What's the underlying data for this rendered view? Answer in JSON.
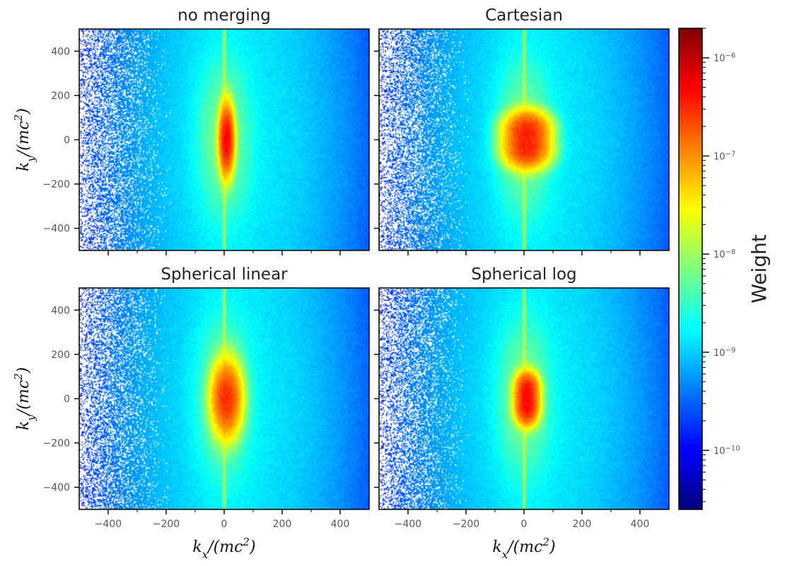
{
  "chart_data": [
    {
      "type": "heatmap",
      "title": "no merging",
      "xlabel": "",
      "ylabel": "k_y/(mc^2)",
      "xlim": [
        -500,
        500
      ],
      "ylim": [
        -500,
        500
      ],
      "x_ticks": [
        -400,
        -200,
        0,
        200,
        400
      ],
      "y_ticks": [
        -400,
        -200,
        0,
        200,
        400
      ],
      "x_tick_labels_shown": false,
      "y_tick_labels_shown": true,
      "core_shape": "single-lobe",
      "peak_weight": 5e-07,
      "core_half_width_kx": 20,
      "core_half_height_ky": 140
    },
    {
      "type": "heatmap",
      "title": "Cartesian",
      "xlabel": "",
      "ylabel": "",
      "xlim": [
        -500,
        500
      ],
      "ylim": [
        -500,
        500
      ],
      "x_ticks": [
        -400,
        -200,
        0,
        200,
        400
      ],
      "y_ticks": [
        -400,
        -200,
        0,
        200,
        400
      ],
      "x_tick_labels_shown": false,
      "y_tick_labels_shown": false,
      "core_shape": "double-lobe",
      "peak_weight": 3e-07,
      "core_half_width_kx": 75,
      "core_half_height_ky": 140
    },
    {
      "type": "heatmap",
      "title": "Spherical linear",
      "xlabel": "k_x/(mc^2)",
      "ylabel": "k_y/(mc^2)",
      "xlim": [
        -500,
        500
      ],
      "ylim": [
        -500,
        500
      ],
      "x_ticks": [
        -400,
        -200,
        0,
        200,
        400
      ],
      "y_ticks": [
        -400,
        -200,
        0,
        200,
        400
      ],
      "x_tick_labels_shown": true,
      "y_tick_labels_shown": true,
      "core_shape": "single-lobe",
      "peak_weight": 3e-07,
      "core_half_width_kx": 40,
      "core_half_height_ky": 150
    },
    {
      "type": "heatmap",
      "title": "Spherical log",
      "xlabel": "k_x/(mc^2)",
      "ylabel": "",
      "xlim": [
        -500,
        500
      ],
      "ylim": [
        -500,
        500
      ],
      "x_ticks": [
        -400,
        -200,
        0,
        200,
        400
      ],
      "y_ticks": [
        -400,
        -200,
        0,
        200,
        400
      ],
      "x_tick_labels_shown": true,
      "y_tick_labels_shown": false,
      "core_shape": "double-lobe",
      "peak_weight": 4e-07,
      "core_half_width_kx": 40,
      "core_half_height_ky": 130
    }
  ],
  "colorbar": {
    "label": "Weight",
    "scale": "log",
    "colormap": "jet",
    "range": [
      2.5e-11,
      2e-06
    ],
    "major_ticks": [
      1e-10,
      1e-09,
      1e-08,
      1e-07,
      1e-06
    ],
    "major_tick_labels": [
      {
        "base": "10",
        "exp": "−10"
      },
      {
        "base": "10",
        "exp": "−9"
      },
      {
        "base": "10",
        "exp": "−8"
      },
      {
        "base": "10",
        "exp": "−7"
      },
      {
        "base": "10",
        "exp": "−6"
      }
    ],
    "colormap_stops": [
      "#00007f",
      "#0000ff",
      "#007fff",
      "#00ffff",
      "#7fff7f",
      "#ffff00",
      "#ff7f00",
      "#ff0000",
      "#7f0000"
    ]
  },
  "x_tick_text": [
    "−400",
    "−200",
    "0",
    "200",
    "400"
  ],
  "y_tick_text": [
    "−400",
    "−200",
    "0",
    "200",
    "400"
  ]
}
